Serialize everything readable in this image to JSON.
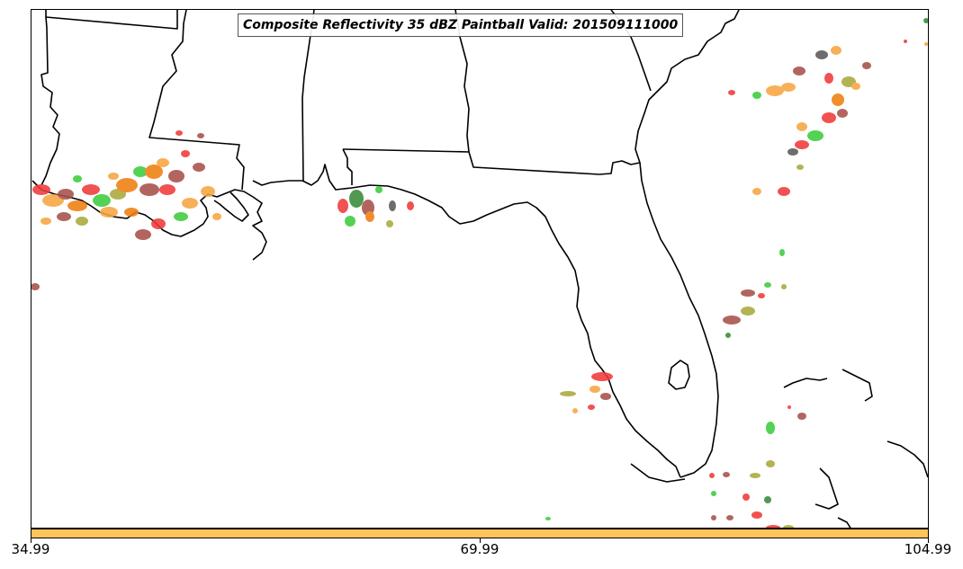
{
  "title": "Composite Reflectivity 35 dBZ Paintball Valid: 201509111000",
  "colorbar": {
    "color": "#ffc35c",
    "ticks": [
      "34.99",
      "69.99",
      "104.99"
    ]
  },
  "colors": {
    "red": "#f03a3a",
    "orange": "#f6a640",
    "dark_orange": "#f07f10",
    "brown": "#a8504a",
    "green": "#3ccc3c",
    "dark_green": "#3a8a3a",
    "olive": "#a9a93c",
    "gray": "#5a5a5a",
    "yellow_orange": "#ffc35c"
  }
}
